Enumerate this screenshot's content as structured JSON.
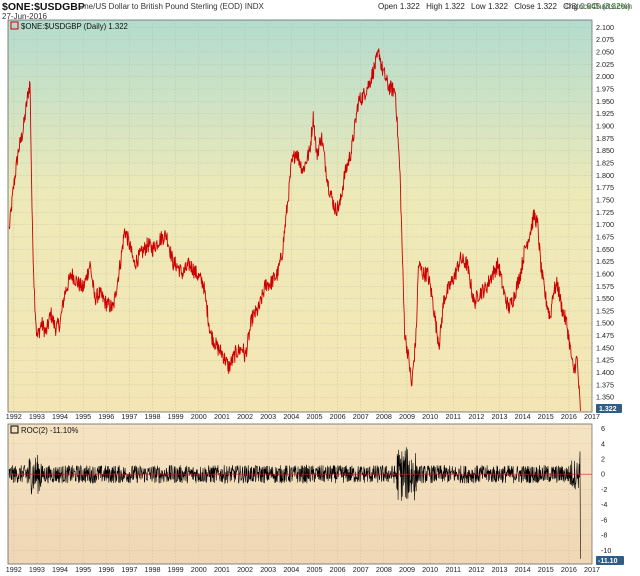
{
  "header": {
    "symbol": "$ONE:$USDGBP",
    "description": "One/US Dollar to British Pound Sterling (EOD)  INDX",
    "date": "27-Jun-2016",
    "open_label": "Open",
    "open": "1.322",
    "high_label": "High",
    "high": "1.322",
    "low_label": "Low",
    "low": "1.322",
    "close_label": "Close",
    "close": "1.322",
    "chg_label": "Chg",
    "chg": "0.045 (3.32%)",
    "brand": "©StockCharts.com"
  },
  "chart_data": [
    {
      "type": "line",
      "legend": "$ONE:$USDGBP (Daily) 1.322",
      "x_tick_labels": [
        "1992",
        "1993",
        "1994",
        "1995",
        "1996",
        "1997",
        "1998",
        "1999",
        "2000",
        "2001",
        "2002",
        "2003",
        "2004",
        "2005",
        "2006",
        "2007",
        "2008",
        "2009",
        "2010",
        "2011",
        "2012",
        "2013",
        "2014",
        "2015",
        "2016",
        "2017"
      ],
      "y_tick_labels": [
        "1.350",
        "1.375",
        "1.400",
        "1.425",
        "1.450",
        "1.475",
        "1.500",
        "1.525",
        "1.550",
        "1.575",
        "1.600",
        "1.625",
        "1.650",
        "1.675",
        "1.700",
        "1.725",
        "1.750",
        "1.775",
        "1.800",
        "1.825",
        "1.850",
        "1.875",
        "1.900",
        "1.925",
        "1.950",
        "1.975",
        "2.000",
        "2.025",
        "2.050",
        "2.075",
        "2.100"
      ],
      "last_value_label": "1.322",
      "ylim": [
        1.32,
        2.115
      ],
      "xlim": [
        1991.75,
        2017.0
      ],
      "series": [
        {
          "color": "#cc0000",
          "x": [
            1991.8,
            1992.0,
            1992.2,
            1992.4,
            1992.6,
            1992.7,
            1992.8,
            1992.9,
            1993.0,
            1993.2,
            1993.4,
            1993.6,
            1993.8,
            1994.0,
            1994.2,
            1994.5,
            1994.8,
            1995.0,
            1995.3,
            1995.5,
            1995.7,
            1996.0,
            1996.3,
            1996.6,
            1996.8,
            1997.0,
            1997.2,
            1997.5,
            1997.8,
            1998.0,
            1998.3,
            1998.6,
            1998.9,
            1999.0,
            1999.3,
            1999.6,
            1999.9,
            2000.2,
            2000.5,
            2000.8,
            2001.0,
            2001.3,
            2001.6,
            2001.9,
            2002.0,
            2002.3,
            2002.6,
            2002.9,
            2003.1,
            2003.4,
            2003.6,
            2003.9,
            2004.0,
            2004.2,
            2004.5,
            2004.8,
            2004.95,
            2005.1,
            2005.3,
            2005.6,
            2005.9,
            2006.1,
            2006.3,
            2006.6,
            2006.9,
            2007.1,
            2007.4,
            2007.6,
            2007.8,
            2007.9,
            2008.2,
            2008.5,
            2008.7,
            2008.9,
            2009.1,
            2009.2,
            2009.4,
            2009.5,
            2009.7,
            2009.9,
            2010.1,
            2010.3,
            2010.4,
            2010.6,
            2010.9,
            2011.1,
            2011.3,
            2011.6,
            2011.9,
            2012.1,
            2012.4,
            2012.7,
            2012.95,
            2013.2,
            2013.4,
            2013.6,
            2013.9,
            2014.1,
            2014.3,
            2014.5,
            2014.65,
            2014.8,
            2015.0,
            2015.2,
            2015.3,
            2015.5,
            2015.7,
            2015.9,
            2016.0,
            2016.2,
            2016.35,
            2016.5
          ],
          "values": [
            1.69,
            1.78,
            1.85,
            1.89,
            1.96,
            1.99,
            1.7,
            1.55,
            1.47,
            1.5,
            1.48,
            1.52,
            1.49,
            1.5,
            1.56,
            1.6,
            1.58,
            1.57,
            1.62,
            1.55,
            1.56,
            1.54,
            1.53,
            1.62,
            1.69,
            1.66,
            1.62,
            1.64,
            1.66,
            1.65,
            1.67,
            1.68,
            1.62,
            1.62,
            1.6,
            1.62,
            1.6,
            1.58,
            1.48,
            1.45,
            1.44,
            1.41,
            1.44,
            1.45,
            1.43,
            1.51,
            1.53,
            1.58,
            1.58,
            1.6,
            1.64,
            1.77,
            1.82,
            1.85,
            1.81,
            1.85,
            1.92,
            1.84,
            1.88,
            1.78,
            1.73,
            1.74,
            1.8,
            1.85,
            1.95,
            1.96,
            1.99,
            2.02,
            2.05,
            2.02,
            1.98,
            1.97,
            1.8,
            1.48,
            1.42,
            1.37,
            1.48,
            1.62,
            1.6,
            1.6,
            1.55,
            1.48,
            1.46,
            1.55,
            1.58,
            1.6,
            1.63,
            1.62,
            1.54,
            1.56,
            1.57,
            1.6,
            1.62,
            1.56,
            1.53,
            1.55,
            1.6,
            1.65,
            1.68,
            1.72,
            1.7,
            1.61,
            1.55,
            1.51,
            1.56,
            1.58,
            1.53,
            1.5,
            1.47,
            1.4,
            1.43,
            1.322
          ]
        }
      ]
    },
    {
      "type": "line",
      "legend": "ROC(2) -11.10%",
      "y_tick_labels": [
        "-10",
        "-8",
        "-6",
        "-4",
        "-2",
        "0",
        "2",
        "4",
        "6"
      ],
      "last_value_label": "-11.10",
      "ylim": [
        -11.8,
        6.6
      ],
      "series": [
        {
          "color": "#000000",
          "description_value": "ROC(2)",
          "last": -11.1
        }
      ]
    }
  ]
}
